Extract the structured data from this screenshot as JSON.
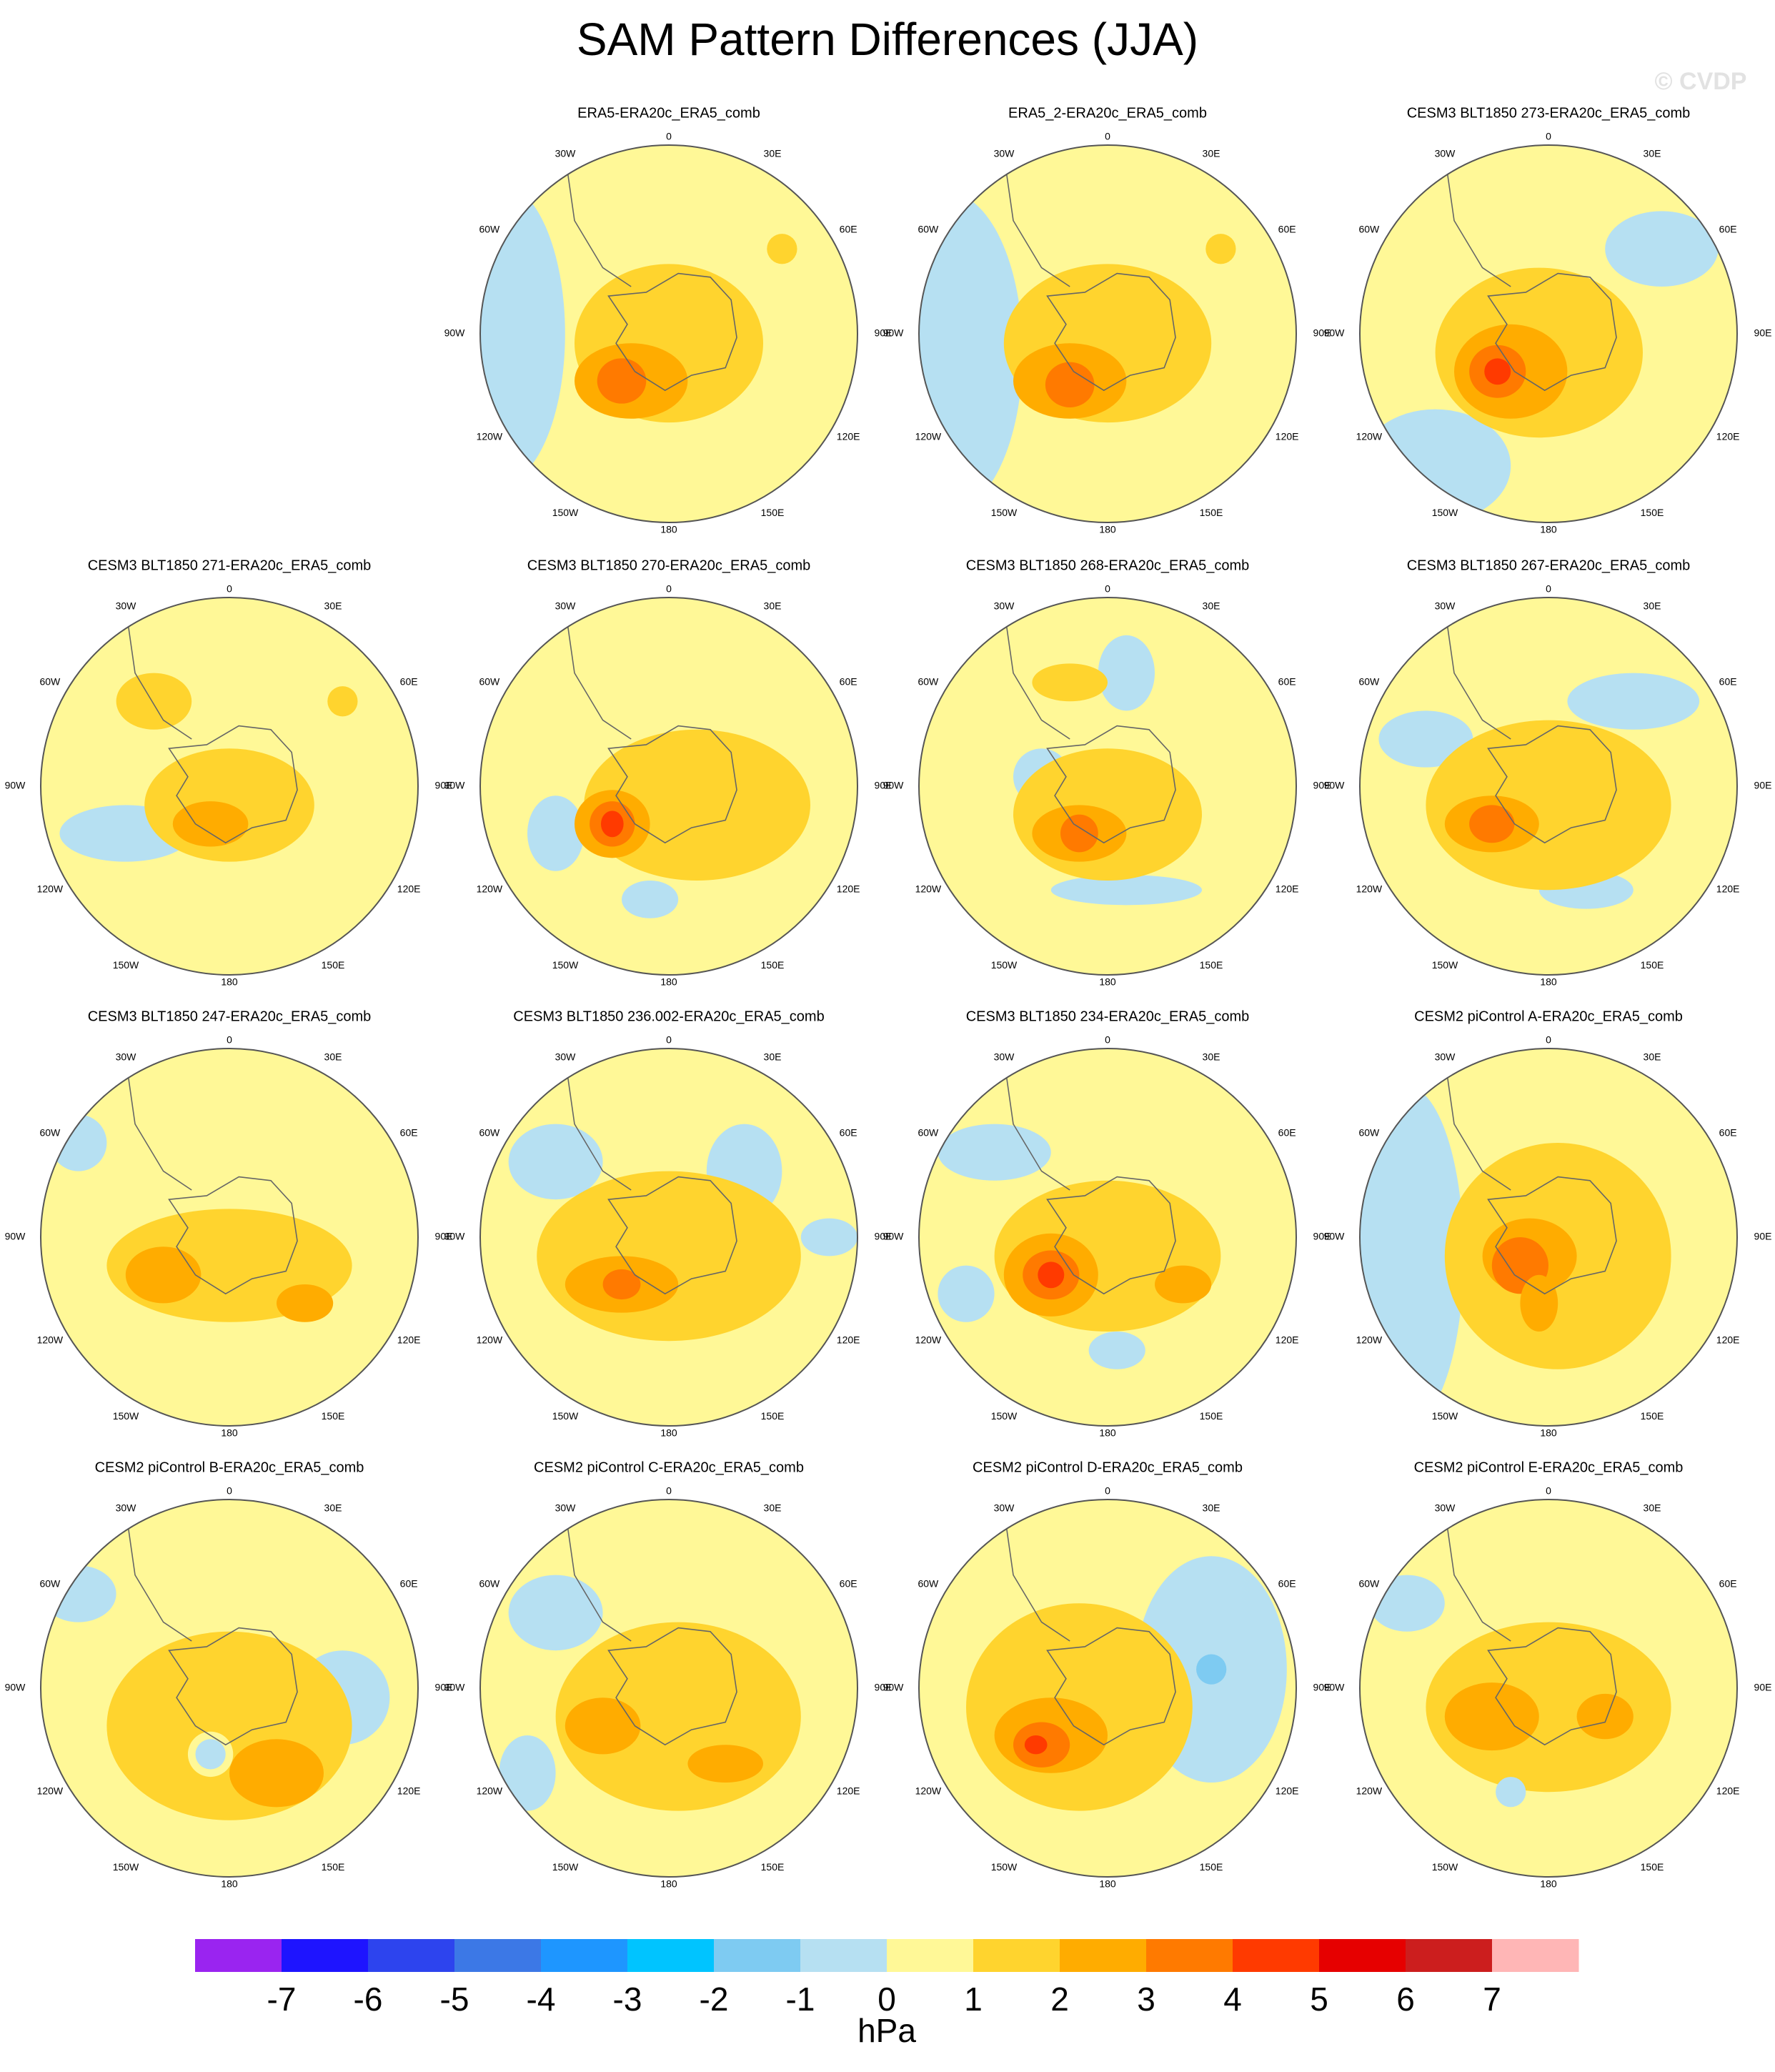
{
  "title": "SAM Pattern Differences (JJA)",
  "watermark": "© CVDP",
  "panels": [
    {
      "title": "ERA5-ERA20c_ERA5_comb"
    },
    {
      "title": "ERA5_2-ERA20c_ERA5_comb"
    },
    {
      "title": "CESM3 BLT1850 273-ERA20c_ERA5_comb"
    },
    {
      "title": "CESM3 BLT1850 271-ERA20c_ERA5_comb"
    },
    {
      "title": "CESM3 BLT1850 270-ERA20c_ERA5_comb"
    },
    {
      "title": "CESM3 BLT1850 268-ERA20c_ERA5_comb"
    },
    {
      "title": "CESM3 BLT1850 267-ERA20c_ERA5_comb"
    },
    {
      "title": "CESM3 BLT1850 247-ERA20c_ERA5_comb"
    },
    {
      "title": "CESM3 BLT1850 236.002-ERA20c_ERA5_comb"
    },
    {
      "title": "CESM3 BLT1850 234-ERA20c_ERA5_comb"
    },
    {
      "title": "CESM2 piControl A-ERA20c_ERA5_comb"
    },
    {
      "title": "CESM2 piControl B-ERA20c_ERA5_comb"
    },
    {
      "title": "CESM2 piControl C-ERA20c_ERA5_comb"
    },
    {
      "title": "CESM2 piControl D-ERA20c_ERA5_comb"
    },
    {
      "title": "CESM2 piControl E-ERA20c_ERA5_comb"
    }
  ],
  "lon_labels": [
    "0",
    "30E",
    "60E",
    "90E",
    "120E",
    "150E",
    "180",
    "150W",
    "120W",
    "90W",
    "60W",
    "30W"
  ],
  "colorbar": {
    "colors": [
      "#9a24f0",
      "#1e14ff",
      "#2d44ee",
      "#3c78e6",
      "#1e96ff",
      "#00c4ff",
      "#7ecbf2",
      "#b6e0f2",
      "#fff897",
      "#ffd42e",
      "#ffac00",
      "#ff7a00",
      "#ff3a00",
      "#e60000",
      "#cc1e1e",
      "#ffb6b6"
    ],
    "ticks": [
      -7,
      -6,
      -5,
      -4,
      -3,
      -2,
      -1,
      0,
      1,
      2,
      3,
      4,
      5,
      6,
      7
    ],
    "label": "hPa"
  }
}
